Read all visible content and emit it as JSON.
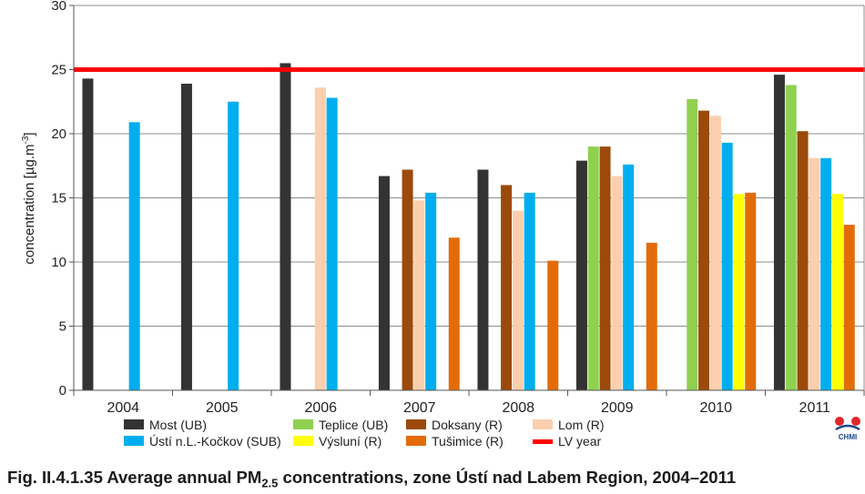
{
  "chart_data": {
    "type": "bar",
    "ylabel_main": "concentration [µg.m",
    "ylabel_sup": "-3",
    "ylabel_end": "]",
    "ylim": [
      0,
      30
    ],
    "yticks": [
      0,
      5,
      10,
      15,
      20,
      25,
      30
    ],
    "categories": [
      "2004",
      "2005",
      "2006",
      "2007",
      "2008",
      "2009",
      "2010",
      "2011"
    ],
    "series": [
      {
        "name": "Most (UB)",
        "color": "#333333",
        "values": [
          24.3,
          23.9,
          25.5,
          16.7,
          17.2,
          17.9,
          null,
          24.6
        ]
      },
      {
        "name": "Teplice (UB)",
        "color": "#8fd14f",
        "values": [
          null,
          null,
          null,
          null,
          null,
          19.0,
          22.7,
          23.8
        ]
      },
      {
        "name": "Doksany (R)",
        "color": "#9c4a0c",
        "values": [
          null,
          null,
          null,
          17.2,
          16.0,
          19.0,
          21.8,
          20.2
        ]
      },
      {
        "name": "Lom (R)",
        "color": "#fbcfae",
        "values": [
          null,
          null,
          23.6,
          14.8,
          14.0,
          16.7,
          21.4,
          18.1
        ]
      },
      {
        "name": "Ústí n.L.-Kočkov (SUB)",
        "color": "#00aeef",
        "values": [
          20.9,
          22.5,
          22.8,
          15.4,
          15.4,
          17.6,
          19.3,
          18.1
        ]
      },
      {
        "name": "Výsluní (R)",
        "color": "#ffff00",
        "values": [
          null,
          null,
          null,
          null,
          null,
          null,
          15.3,
          15.3
        ]
      },
      {
        "name": "Tušimice (R)",
        "color": "#e36c09",
        "values": [
          null,
          null,
          null,
          11.9,
          10.1,
          11.5,
          15.4,
          12.9
        ]
      }
    ],
    "limit_line": {
      "name": "LV year",
      "value": 25,
      "color": "#ff0000"
    },
    "legend": {
      "placement": "bottom",
      "order": [
        0,
        4,
        1,
        5,
        2,
        6,
        3,
        7
      ]
    },
    "grid": "horizontal"
  },
  "caption": {
    "prefix": "Fig. II.4.1.35  Average annual PM",
    "sub": "2.5",
    "suffix": " concentrations, zone Ústí nad Labem Region, 2004–2011"
  },
  "logo": {
    "text": "CHMI"
  }
}
